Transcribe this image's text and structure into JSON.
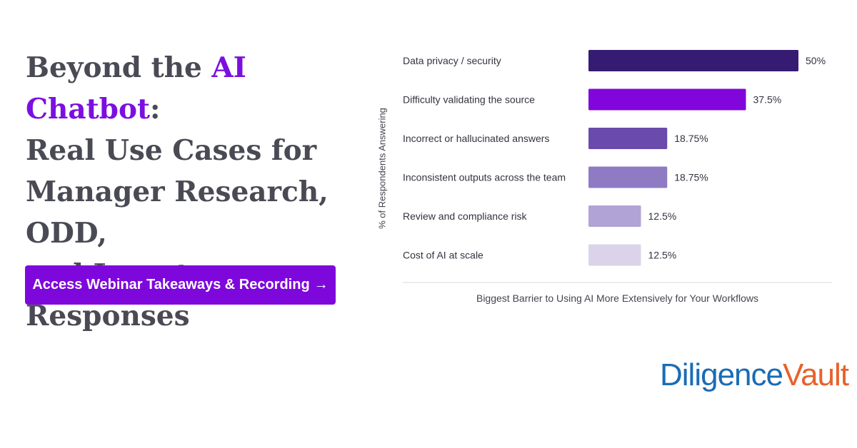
{
  "headline": {
    "pre": "Beyond the ",
    "accent": "AI Chatbot",
    "post": ":",
    "line2": "Real Use Cases for",
    "line3": "Manager Research, ODD,",
    "line4": "and Investor Responses"
  },
  "cta": {
    "label": "Access Webinar Takeaways & Recording",
    "arrow": "→"
  },
  "chart_data": {
    "type": "bar",
    "orientation": "horizontal",
    "categories": [
      "Data privacy / security",
      "Difficulty validating the source",
      "Incorrect or hallucinated answers",
      "Inconsistent outputs across the team",
      "Review and compliance risk",
      "Cost of AI at scale"
    ],
    "values": [
      50,
      37.5,
      18.75,
      18.75,
      12.5,
      12.5
    ],
    "value_labels": [
      "50%",
      "37.5%",
      "18.75%",
      "18.75%",
      "12.5%",
      "12.5%"
    ],
    "colors": [
      "#361b72",
      "#8106dc",
      "#6a4aab",
      "#8e7bc4",
      "#b2a3d6",
      "#dbd3ea"
    ],
    "xlabel": "Biggest Barrier to Using AI More Extensively for Your Workflows",
    "ylabel": "% of Respondents Answering",
    "xlim": [
      0,
      50
    ],
    "grid": false,
    "legend": "none"
  },
  "logo": {
    "part1": "Diligence",
    "part2": "Vault"
  }
}
